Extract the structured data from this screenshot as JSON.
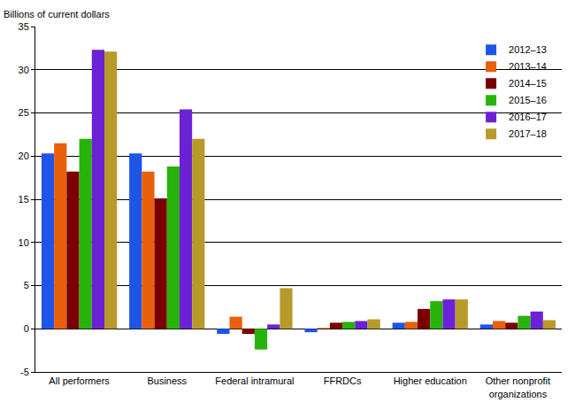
{
  "chart_data": {
    "type": "bar",
    "y_label": "Billions of current dollars",
    "categories": [
      "All performers",
      "Business",
      "Federal intramural",
      "FFRDCs",
      "Higher education",
      "Other nonprofit organizations"
    ],
    "series": [
      {
        "name": "2012–13",
        "color": "#1f55e6",
        "values": [
          20.3,
          20.3,
          -0.6,
          -0.4,
          0.7,
          0.5
        ]
      },
      {
        "name": "2013–14",
        "color": "#ea5f0a",
        "values": [
          21.5,
          18.2,
          1.4,
          0.1,
          0.8,
          0.9
        ]
      },
      {
        "name": "2014–15",
        "color": "#7a0000",
        "values": [
          18.2,
          15.1,
          -0.6,
          0.7,
          2.3,
          0.7
        ]
      },
      {
        "name": "2015–16",
        "color": "#28b30a",
        "values": [
          22.0,
          18.8,
          -2.4,
          0.8,
          3.2,
          1.5
        ]
      },
      {
        "name": "2016–17",
        "color": "#6a22d4",
        "values": [
          32.3,
          25.4,
          0.5,
          0.9,
          3.4,
          2.0
        ]
      },
      {
        "name": "2017–18",
        "color": "#b89a2a",
        "values": [
          32.1,
          22.0,
          4.7,
          1.1,
          3.4,
          1.0
        ]
      }
    ],
    "ylim": [
      -5,
      35
    ],
    "yticks": [
      -5,
      0,
      5,
      10,
      15,
      20,
      25,
      30,
      35
    ],
    "grid": true,
    "legend": "top right"
  }
}
